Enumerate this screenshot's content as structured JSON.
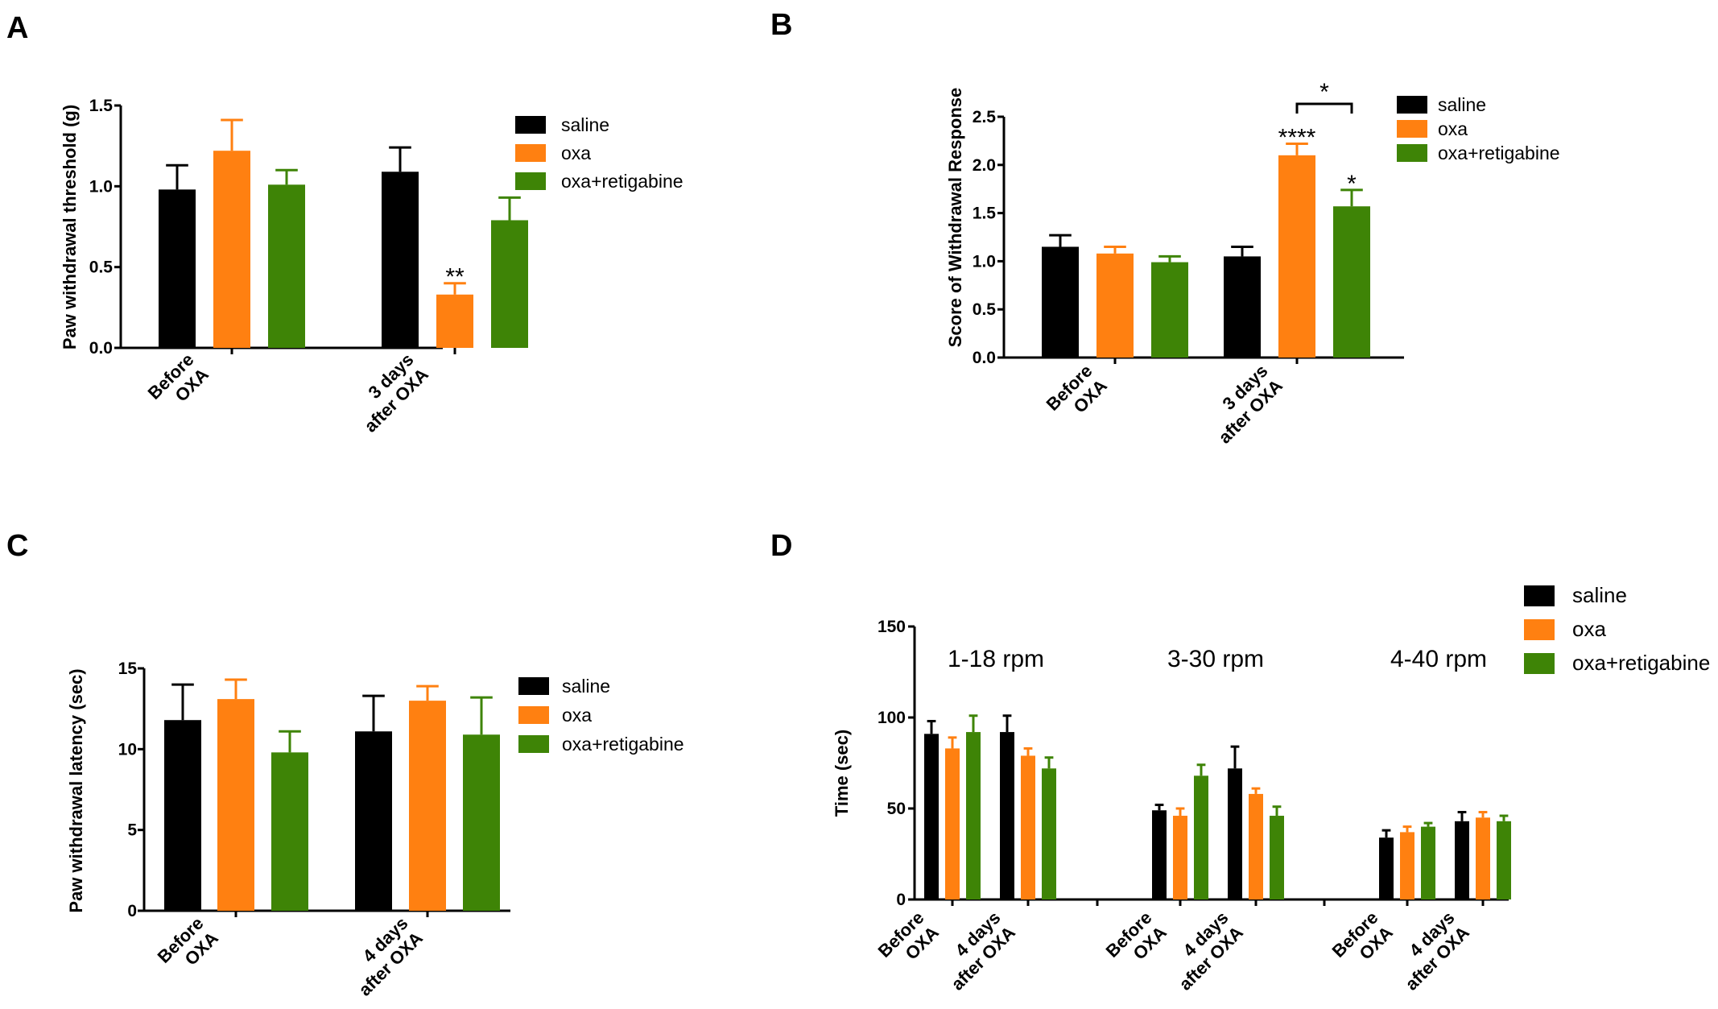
{
  "colors": {
    "saline": "#000000",
    "oxa": "#ff8011",
    "oxa_retigabine": "#3e8406"
  },
  "chart_data": [
    {
      "id": "A",
      "panel_label": "A",
      "type": "bar",
      "ylabel": "Paw withdrawal threshold (g)",
      "ylim": [
        0,
        1.5
      ],
      "yticks": [
        "0.0",
        "0.5",
        "1.0",
        "1.5"
      ],
      "categories": [
        [
          "Before",
          "OXA"
        ],
        [
          "3 days",
          "after OXA"
        ]
      ],
      "legend": [
        "saline",
        "oxa",
        "oxa+retigabine"
      ],
      "series": [
        {
          "name": "saline",
          "values": [
            0.98,
            1.09
          ],
          "errors": [
            0.15,
            0.15
          ]
        },
        {
          "name": "oxa",
          "values": [
            1.22,
            0.33
          ],
          "errors": [
            0.19,
            0.07
          ]
        },
        {
          "name": "oxa+retigabine",
          "values": [
            1.01,
            0.79
          ],
          "errors": [
            0.09,
            0.14
          ]
        }
      ],
      "annotations": [
        {
          "text": "**",
          "series": 1,
          "category": 1
        }
      ]
    },
    {
      "id": "B",
      "panel_label": "B",
      "type": "bar",
      "ylabel": "Score of Withdrawal Response",
      "ylim": [
        0,
        2.5
      ],
      "yticks": [
        "0.0",
        "0.5",
        "1.0",
        "1.5",
        "2.0",
        "2.5"
      ],
      "categories": [
        [
          "Before",
          "OXA"
        ],
        [
          "3 days",
          "after OXA"
        ]
      ],
      "legend": [
        "saline",
        "oxa",
        "oxa+retigabine"
      ],
      "series": [
        {
          "name": "saline",
          "values": [
            1.15,
            1.05
          ],
          "errors": [
            0.12,
            0.1
          ]
        },
        {
          "name": "oxa",
          "values": [
            1.08,
            2.1
          ],
          "errors": [
            0.07,
            0.12
          ]
        },
        {
          "name": "oxa+retigabine",
          "values": [
            0.99,
            1.57
          ],
          "errors": [
            0.06,
            0.17
          ]
        }
      ],
      "annotations": [
        {
          "text": "****",
          "series": 1,
          "category": 1
        },
        {
          "text": "*",
          "series": 2,
          "category": 1
        }
      ],
      "bracket": {
        "text": "*",
        "from_series": 1,
        "to_series": 2,
        "category": 1
      }
    },
    {
      "id": "C",
      "panel_label": "C",
      "type": "bar",
      "ylabel": "Paw withdrawal  latency (sec)",
      "ylim": [
        0,
        15
      ],
      "yticks": [
        "0",
        "5",
        "10",
        "15"
      ],
      "categories": [
        [
          "Before",
          "OXA"
        ],
        [
          "4 days",
          "after OXA"
        ]
      ],
      "legend": [
        "saline",
        "oxa",
        "oxa+retigabine"
      ],
      "series": [
        {
          "name": "saline",
          "values": [
            11.8,
            11.1
          ],
          "errors": [
            2.2,
            2.2
          ]
        },
        {
          "name": "oxa",
          "values": [
            13.1,
            13.0
          ],
          "errors": [
            1.2,
            0.9
          ]
        },
        {
          "name": "oxa+retigabine",
          "values": [
            9.8,
            10.9
          ],
          "errors": [
            1.3,
            2.3
          ]
        }
      ]
    },
    {
      "id": "D",
      "panel_label": "D",
      "type": "bar",
      "ylabel": "Time (sec)",
      "ylim": [
        0,
        150
      ],
      "yticks": [
        "0",
        "50",
        "100",
        "150"
      ],
      "groups": [
        "1-18 rpm",
        "3-30 rpm",
        "4-40 rpm"
      ],
      "categories": [
        [
          "Before",
          "OXA"
        ],
        [
          "4 days",
          "after OXA"
        ],
        [
          "Before",
          "OXA"
        ],
        [
          "4 days",
          "after OXA"
        ],
        [
          "Before",
          "OXA"
        ],
        [
          "4 days",
          "after OXA"
        ]
      ],
      "legend": [
        "saline",
        "oxa",
        "oxa+retigabine"
      ],
      "series": [
        {
          "name": "saline",
          "values": [
            91,
            92,
            49,
            72,
            34,
            43
          ],
          "errors": [
            7,
            9,
            3,
            12,
            4,
            5
          ]
        },
        {
          "name": "oxa",
          "values": [
            83,
            79,
            46,
            58,
            37,
            45
          ],
          "errors": [
            6,
            4,
            4,
            3,
            3,
            3
          ]
        },
        {
          "name": "oxa+retigabine",
          "values": [
            92,
            72,
            68,
            46,
            40,
            43
          ],
          "errors": [
            9,
            6,
            6,
            5,
            2,
            3
          ]
        }
      ]
    }
  ]
}
